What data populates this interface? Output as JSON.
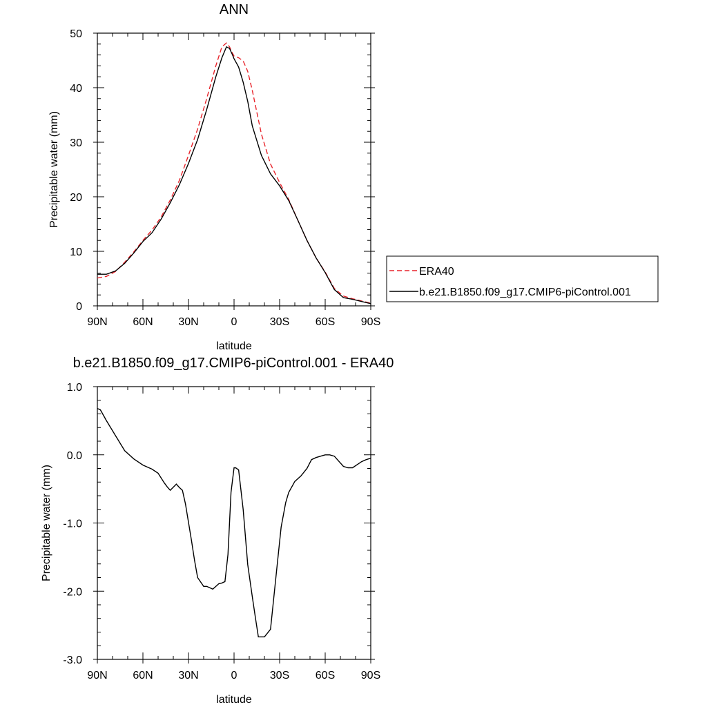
{
  "chart_data": [
    {
      "type": "line",
      "title": "ANN",
      "xlabel": "latitude",
      "ylabel": "Precipitable water (mm)",
      "xlim": [
        90,
        -90
      ],
      "ylim": [
        0,
        50
      ],
      "xticks": [
        90,
        60,
        30,
        0,
        -30,
        -60,
        -90
      ],
      "xtick_labels": [
        "90N",
        "60N",
        "30N",
        "0",
        "30S",
        "60S",
        "90S"
      ],
      "yticks": [
        0,
        10,
        20,
        30,
        40,
        50
      ],
      "ytick_labels": [
        "0",
        "10",
        "20",
        "30",
        "40",
        "50"
      ],
      "grid": false,
      "legend_position": "right",
      "series": [
        {
          "name": "ERA40",
          "color": "#e8242b",
          "dash": "dashed",
          "x": [
            90,
            84,
            78,
            72,
            66,
            60,
            54,
            48,
            42,
            36,
            30,
            24,
            18,
            12,
            8,
            5,
            3,
            1,
            0,
            -3,
            -6,
            -9,
            -12,
            -18,
            -24,
            -30,
            -36,
            -42,
            -48,
            -54,
            -60,
            -66,
            -72,
            -78,
            -84,
            -90
          ],
          "y": [
            5.1,
            5.4,
            6.3,
            8.0,
            9.9,
            12.0,
            13.9,
            16.3,
            19.4,
            23.0,
            27.6,
            32.4,
            38.0,
            44.0,
            47.5,
            48.2,
            47.5,
            46.3,
            45.8,
            45.5,
            44.9,
            43.0,
            39.5,
            31.5,
            26.0,
            22.6,
            19.5,
            15.7,
            12.0,
            8.8,
            6.2,
            3.2,
            1.8,
            1.3,
            0.9,
            0.5
          ]
        },
        {
          "name": "b.e21.B1850.f09_g17.CMIP6-piControl.001",
          "color": "#000000",
          "dash": "solid",
          "x": [
            90,
            84,
            78,
            72,
            66,
            60,
            54,
            48,
            42,
            36,
            30,
            24,
            18,
            12,
            8,
            5,
            3,
            1,
            0,
            -3,
            -6,
            -9,
            -12,
            -18,
            -24,
            -30,
            -36,
            -42,
            -48,
            -54,
            -60,
            -66,
            -72,
            -78,
            -84,
            -90
          ],
          "y": [
            5.8,
            5.8,
            6.4,
            7.8,
            9.7,
            11.8,
            13.4,
            15.9,
            18.9,
            22.2,
            26.1,
            30.5,
            36.0,
            42.0,
            45.5,
            47.5,
            47.2,
            46.0,
            45.3,
            43.8,
            41.0,
            37.5,
            33.0,
            27.6,
            24.2,
            22.0,
            19.3,
            15.7,
            12.0,
            8.8,
            6.1,
            3.0,
            1.5,
            1.2,
            0.8,
            0.4
          ]
        }
      ]
    },
    {
      "type": "line",
      "title": "b.e21.B1850.f09_g17.CMIP6-piControl.001 - ERA40",
      "xlabel": "latitude",
      "ylabel": "Precipitable water (mm)",
      "xlim": [
        90,
        -90
      ],
      "ylim": [
        -3.0,
        1.0
      ],
      "xticks": [
        90,
        60,
        30,
        0,
        -30,
        -60,
        -90
      ],
      "xtick_labels": [
        "90N",
        "60N",
        "30N",
        "0",
        "30S",
        "60S",
        "90S"
      ],
      "yticks": [
        -3.0,
        -2.0,
        -1.0,
        0.0,
        1.0
      ],
      "ytick_labels": [
        "-3.0",
        "-2.0",
        "-1.0",
        "0.0",
        "1.0"
      ],
      "grid": false,
      "series": [
        {
          "color": "#000000",
          "dash": "solid",
          "x": [
            90,
            88,
            84,
            78,
            72,
            66,
            60,
            54,
            50,
            46,
            44,
            42,
            38,
            36,
            34,
            32,
            28,
            26,
            24,
            20,
            18,
            16,
            14,
            10,
            8,
            6,
            4,
            2,
            0,
            -1,
            -3,
            -6,
            -9,
            -12,
            -14,
            -16,
            -20,
            -24,
            -28,
            -31,
            -34,
            -36,
            -40,
            -44,
            -48,
            -51,
            -54,
            -57,
            -60,
            -63,
            -66,
            -72,
            -75,
            -78,
            -84,
            -87,
            -90
          ],
          "y": [
            0.68,
            0.66,
            0.5,
            0.28,
            0.06,
            -0.06,
            -0.15,
            -0.21,
            -0.27,
            -0.41,
            -0.47,
            -0.52,
            -0.43,
            -0.48,
            -0.52,
            -0.72,
            -1.26,
            -1.55,
            -1.8,
            -1.93,
            -1.93,
            -1.95,
            -1.97,
            -1.89,
            -1.88,
            -1.86,
            -1.46,
            -0.55,
            -0.19,
            -0.19,
            -0.22,
            -0.8,
            -1.61,
            -2.08,
            -2.38,
            -2.67,
            -2.67,
            -2.56,
            -1.7,
            -1.06,
            -0.7,
            -0.55,
            -0.39,
            -0.31,
            -0.2,
            -0.07,
            -0.04,
            -0.02,
            0.0,
            0.0,
            -0.02,
            -0.17,
            -0.19,
            -0.19,
            -0.1,
            -0.07,
            -0.05
          ]
        }
      ]
    }
  ]
}
